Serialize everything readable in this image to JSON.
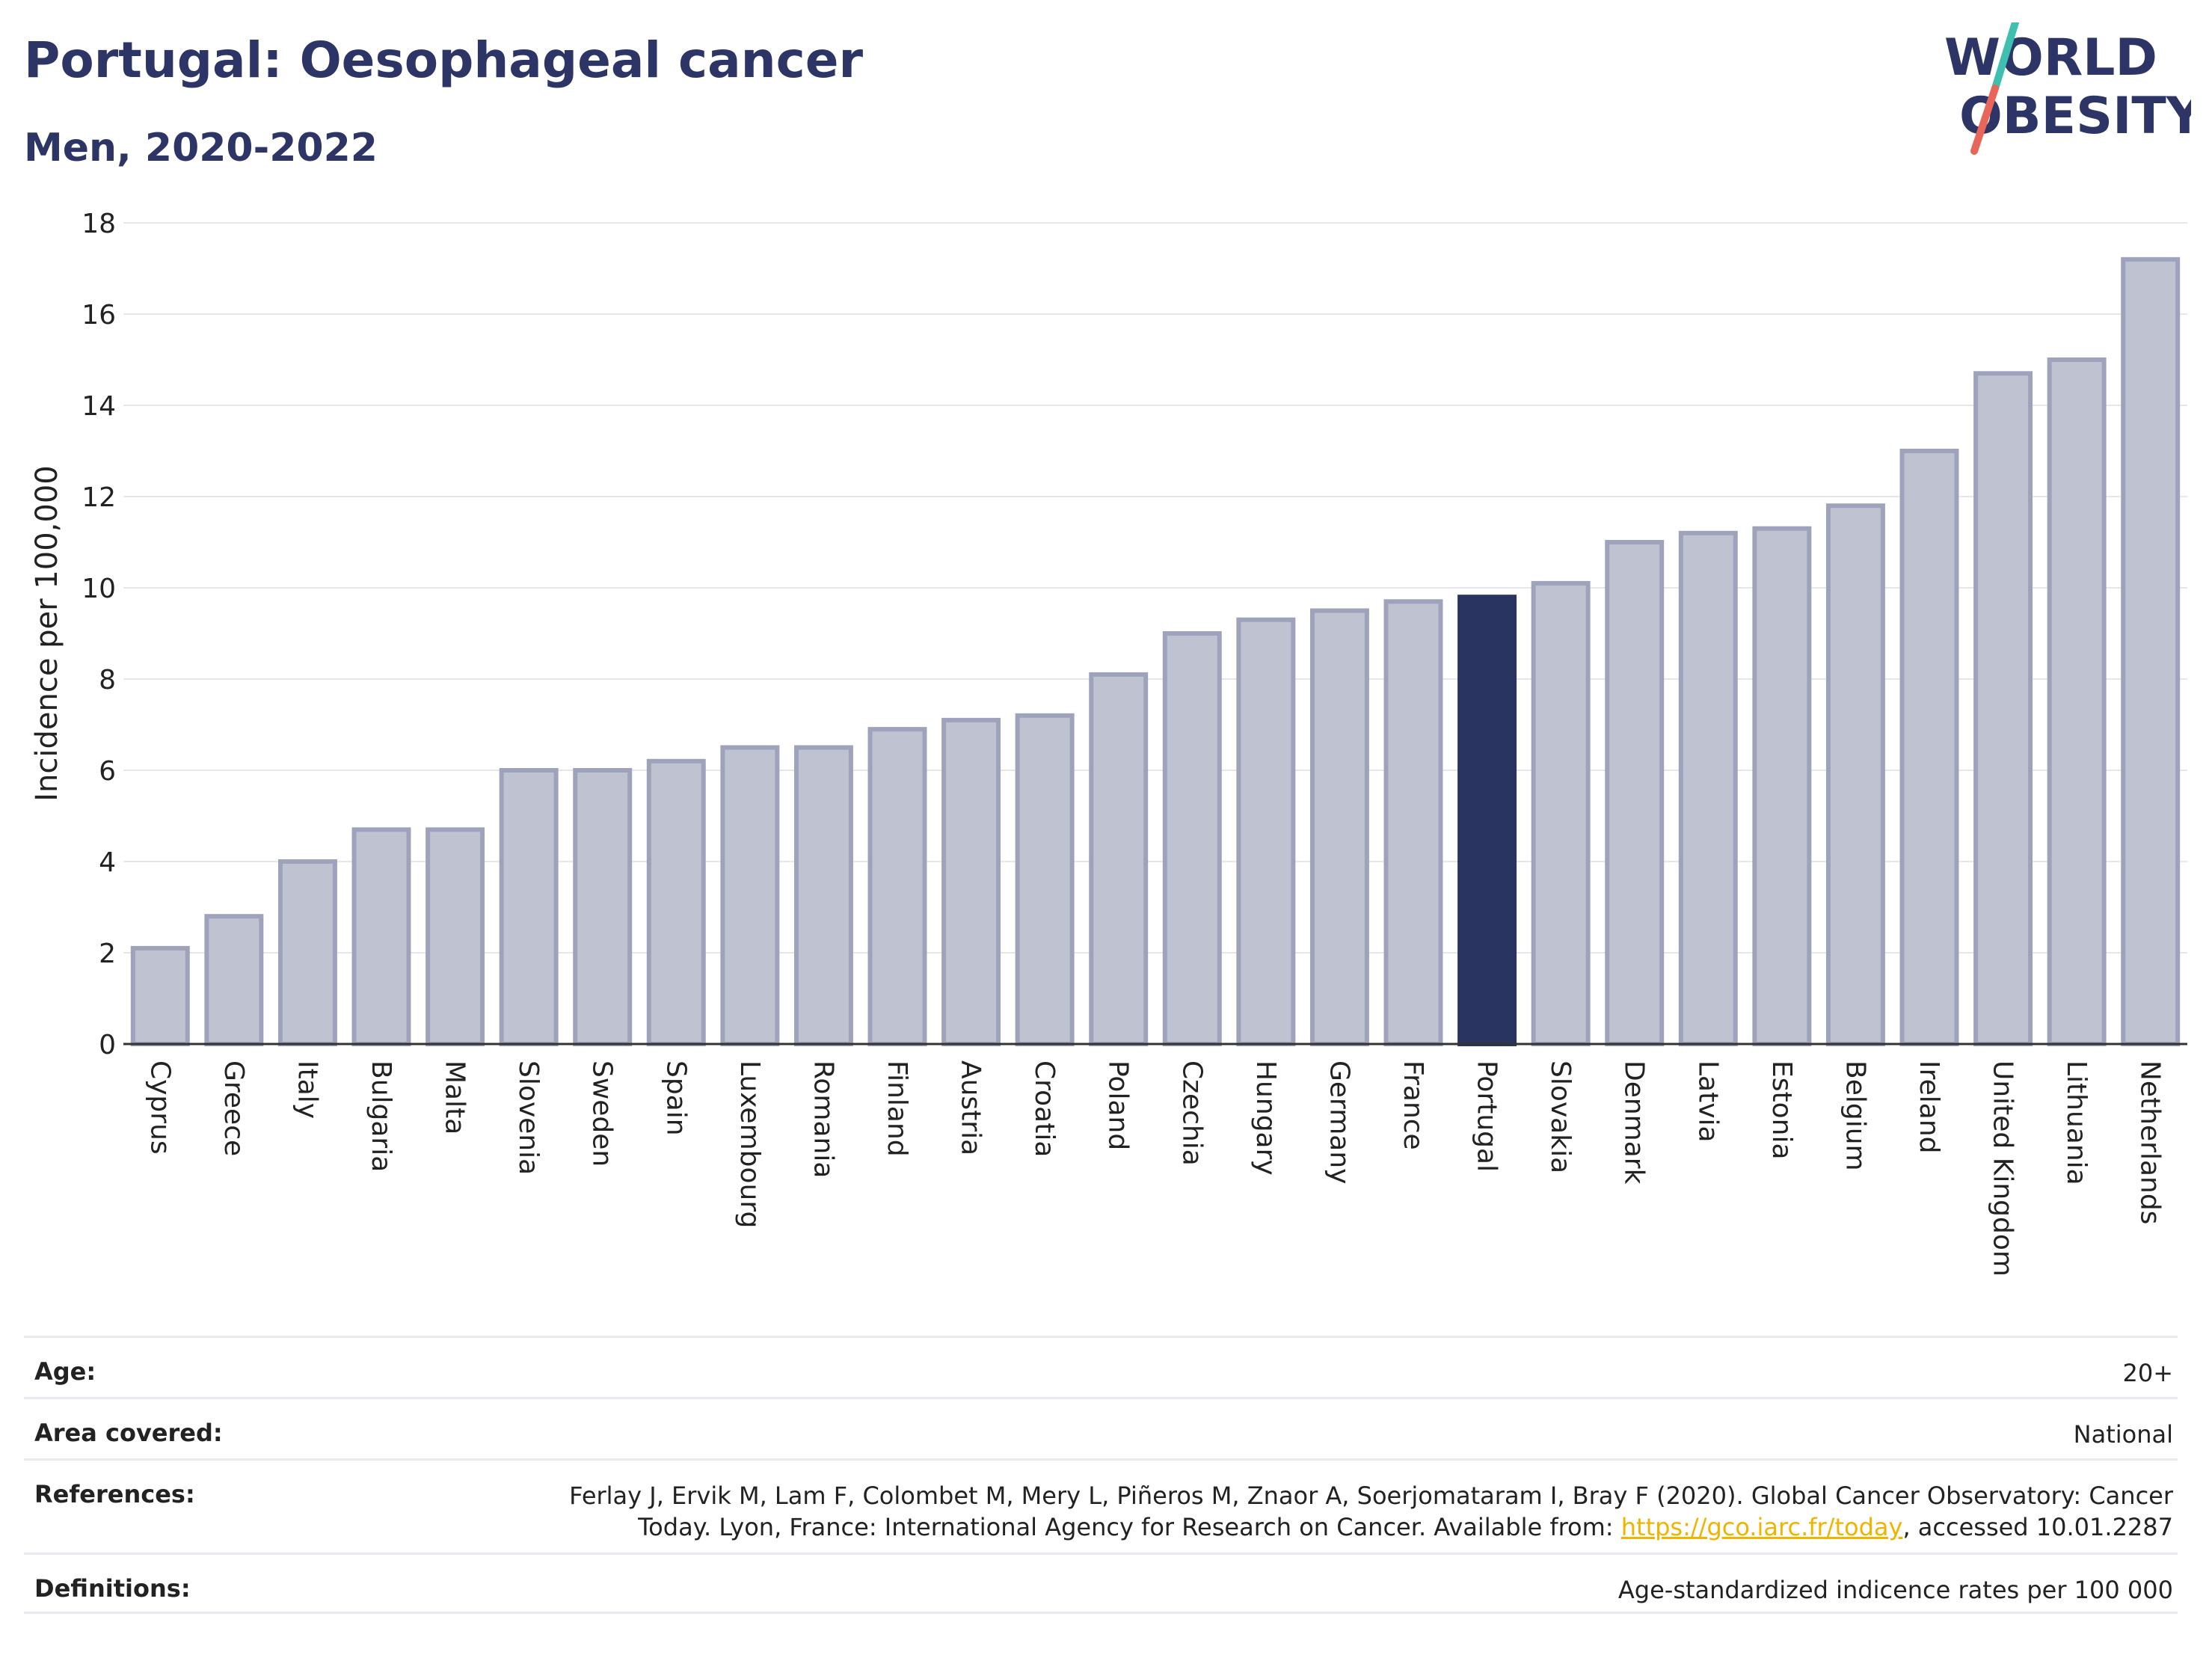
{
  "header": {
    "title": "Portugal: Oesophageal cancer",
    "subtitle": "Men, 2020-2022"
  },
  "logo": {
    "line1": "WORLD",
    "line2": "OBESITY",
    "slash_colors": [
      "#3fbfb0",
      "#e8665a"
    ]
  },
  "colors": {
    "bar_default": "#bfc2d0",
    "bar_default_border": "#9ea3bb",
    "bar_highlight": "#2a3461",
    "grid": "#e6e6ec",
    "axis": "#333333",
    "link": "#f0b400"
  },
  "chart_data": {
    "type": "bar",
    "title": "Portugal: Oesophageal cancer",
    "subtitle": "Men, 2020-2022",
    "xlabel": "",
    "ylabel": "Incidence per 100,000",
    "ylim": [
      0,
      18
    ],
    "yticks": [
      0,
      2,
      4,
      6,
      8,
      10,
      12,
      14,
      16,
      18
    ],
    "grid": true,
    "highlight": "Portugal",
    "categories": [
      "Cyprus",
      "Greece",
      "Italy",
      "Bulgaria",
      "Malta",
      "Slovenia",
      "Sweden",
      "Spain",
      "Luxembourg",
      "Romania",
      "Finland",
      "Austria",
      "Croatia",
      "Poland",
      "Czechia",
      "Hungary",
      "Germany",
      "France",
      "Portugal",
      "Slovakia",
      "Denmark",
      "Latvia",
      "Estonia",
      "Belgium",
      "Ireland",
      "United Kingdom",
      "Lithuania",
      "Netherlands"
    ],
    "values": [
      2.1,
      2.8,
      4.0,
      4.7,
      4.7,
      6.0,
      6.0,
      6.2,
      6.5,
      6.5,
      6.9,
      7.1,
      7.2,
      8.1,
      9.0,
      9.3,
      9.5,
      9.7,
      9.8,
      10.1,
      11.0,
      11.2,
      11.3,
      11.8,
      13.0,
      14.7,
      15.0,
      17.2
    ]
  },
  "info": {
    "age_label": "Age:",
    "age_value": "20+",
    "area_label": "Area covered:",
    "area_value": "National",
    "references_label": "References:",
    "references_text_1": "Ferlay J, Ervik M, Lam F, Colombet M, Mery L, Piñeros M, Znaor A, Soerjomataram I, Bray F (2020). Global Cancer Observatory: Cancer Today. Lyon, France: International Agency for Research on Cancer. Available from: ",
    "references_link": "https://gco.iarc.fr/today",
    "references_text_2": ", accessed 10.01.2287",
    "definitions_label": "Definitions:",
    "definitions_value": "Age-standardized indicence rates per 100 000"
  }
}
